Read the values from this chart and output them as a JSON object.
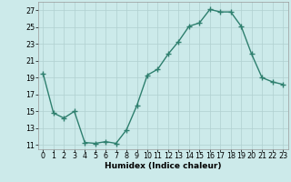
{
  "x": [
    0,
    1,
    2,
    3,
    4,
    5,
    6,
    7,
    8,
    9,
    10,
    11,
    12,
    13,
    14,
    15,
    16,
    17,
    18,
    19,
    20,
    21,
    22,
    23
  ],
  "y": [
    19.5,
    14.8,
    14.2,
    15.0,
    11.3,
    11.2,
    11.4,
    11.2,
    12.8,
    15.7,
    19.3,
    20.0,
    21.8,
    23.3,
    25.1,
    25.5,
    27.1,
    26.8,
    26.8,
    25.1,
    21.8,
    19.0,
    18.5,
    18.2
  ],
  "line_color": "#2e7f6e",
  "marker": "+",
  "markersize": 4,
  "linewidth": 1.0,
  "bg_color": "#cceaea",
  "grid_color": "#b0d0d0",
  "xlabel": "Humidex (Indice chaleur)",
  "xlim": [
    -0.5,
    23.5
  ],
  "ylim": [
    10.5,
    28.0
  ],
  "yticks": [
    11,
    13,
    15,
    17,
    19,
    21,
    23,
    25,
    27
  ],
  "xtick_labels": [
    "0",
    "1",
    "2",
    "3",
    "4",
    "5",
    "6",
    "7",
    "8",
    "9",
    "10",
    "11",
    "12",
    "13",
    "14",
    "15",
    "16",
    "17",
    "18",
    "19",
    "20",
    "21",
    "22",
    "23"
  ],
  "xlabel_fontsize": 6.5,
  "tick_fontsize": 5.8,
  "markeredgewidth": 1.0
}
